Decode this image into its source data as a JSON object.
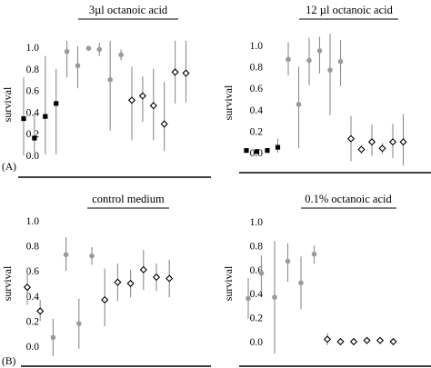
{
  "chart_data": [
    {
      "id": "p1",
      "type": "scatter",
      "title": "3µl octanoic acid",
      "ylabel": "survival",
      "panel_label": "(A)",
      "ylim": [
        -0.05,
        1.1
      ],
      "yticks": [
        "0.0",
        "0.2",
        "0.4",
        "0.6",
        "0.8",
        "1.0"
      ],
      "series": [
        {
          "marker": "square",
          "color": "#000000",
          "points": [
            {
              "x": 1,
              "y": 0.34,
              "lo": 0.0,
              "hi": 0.72
            },
            {
              "x": 2,
              "y": 0.16,
              "lo": 0.02,
              "hi": 0.38
            },
            {
              "x": 3,
              "y": 0.36,
              "lo": 0.01,
              "hi": 0.92
            },
            {
              "x": 4,
              "y": 0.48,
              "lo": 0.01,
              "hi": 0.8
            }
          ]
        },
        {
          "marker": "circle",
          "color": "#9a9a9a",
          "points": [
            {
              "x": 5,
              "y": 0.96,
              "lo": 0.72,
              "hi": 1.06
            },
            {
              "x": 6,
              "y": 0.83,
              "lo": 0.62,
              "hi": 1.01
            },
            {
              "x": 7,
              "y": 0.99,
              "lo": 0.99,
              "hi": 0.99
            },
            {
              "x": 8,
              "y": 0.98,
              "lo": 0.92,
              "hi": 1.04
            },
            {
              "x": 9,
              "y": 0.7,
              "lo": 0.23,
              "hi": 1.06
            },
            {
              "x": 10,
              "y": 0.93,
              "lo": 0.88,
              "hi": 0.98
            }
          ]
        },
        {
          "marker": "diamond",
          "color": "#000000",
          "points": [
            {
              "x": 11,
              "y": 0.51,
              "lo": 0.14,
              "hi": 0.82
            },
            {
              "x": 12,
              "y": 0.55,
              "lo": 0.31,
              "hi": 0.73
            },
            {
              "x": 13,
              "y": 0.46,
              "lo": 0.14,
              "hi": 0.8
            },
            {
              "x": 14,
              "y": 0.29,
              "lo": 0.04,
              "hi": 0.68
            },
            {
              "x": 15,
              "y": 0.77,
              "lo": 0.48,
              "hi": 1.06
            },
            {
              "x": 16,
              "y": 0.76,
              "lo": 0.49,
              "hi": 1.06
            }
          ]
        }
      ]
    },
    {
      "id": "p2",
      "type": "scatter",
      "title": "12 µl octanoic acid",
      "ylabel": "survival",
      "panel_label": "",
      "ylim": [
        -0.1,
        1.1
      ],
      "yticks": [
        "0.0",
        "0.2",
        "0.4",
        "0.6",
        "0.8",
        "1.0"
      ],
      "series": [
        {
          "marker": "square",
          "color": "#000000",
          "points": [
            {
              "x": 1,
              "y": 0.02,
              "lo": 0.02,
              "hi": 0.02
            },
            {
              "x": 2,
              "y": 0.01,
              "lo": 0.01,
              "hi": 0.01
            },
            {
              "x": 3,
              "y": 0.02,
              "lo": 0.02,
              "hi": 0.02
            },
            {
              "x": 4,
              "y": 0.05,
              "lo": 0.0,
              "hi": 0.13
            }
          ]
        },
        {
          "marker": "circle",
          "color": "#9a9a9a",
          "points": [
            {
              "x": 5,
              "y": 0.87,
              "lo": 0.72,
              "hi": 1.03
            },
            {
              "x": 6,
              "y": 0.45,
              "lo": 0.04,
              "hi": 0.8
            },
            {
              "x": 7,
              "y": 0.86,
              "lo": 0.63,
              "hi": 1.07
            },
            {
              "x": 8,
              "y": 0.95,
              "lo": 0.74,
              "hi": 1.08
            },
            {
              "x": 9,
              "y": 0.77,
              "lo": 0.35,
              "hi": 1.11
            },
            {
              "x": 10,
              "y": 0.85,
              "lo": 0.62,
              "hi": 1.05
            }
          ]
        },
        {
          "marker": "diamond",
          "color": "#000000",
          "points": [
            {
              "x": 11,
              "y": 0.13,
              "lo": -0.08,
              "hi": 0.34
            },
            {
              "x": 12,
              "y": 0.03,
              "lo": -0.01,
              "hi": 0.07
            },
            {
              "x": 13,
              "y": 0.1,
              "lo": -0.03,
              "hi": 0.26
            },
            {
              "x": 14,
              "y": 0.04,
              "lo": -0.01,
              "hi": 0.09
            },
            {
              "x": 15,
              "y": 0.1,
              "lo": -0.05,
              "hi": 0.27
            },
            {
              "x": 16,
              "y": 0.1,
              "lo": -0.12,
              "hi": 0.36
            }
          ]
        }
      ]
    },
    {
      "id": "p3",
      "type": "scatter",
      "title": "control medium",
      "ylabel": "survival",
      "panel_label": "(B)",
      "ylim": [
        -0.1,
        1.05
      ],
      "yticks": [
        "0.0",
        "0.2",
        "0.4",
        "0.6",
        "0.8",
        "1.0"
      ],
      "series": [
        {
          "marker": "diamond",
          "color": "#000000",
          "points": [
            {
              "x": 1,
              "y": 0.47,
              "lo": 0.33,
              "hi": 0.62
            },
            {
              "x": 2,
              "y": 0.28,
              "lo": 0.2,
              "hi": 0.37
            }
          ]
        },
        {
          "marker": "circle",
          "color": "#9a9a9a",
          "points": [
            {
              "x": 3,
              "y": 0.07,
              "lo": -0.08,
              "hi": 0.22
            },
            {
              "x": 4,
              "y": 0.73,
              "lo": 0.6,
              "hi": 0.87
            },
            {
              "x": 5,
              "y": 0.18,
              "lo": -0.02,
              "hi": 0.38
            },
            {
              "x": 6,
              "y": 0.72,
              "lo": 0.65,
              "hi": 0.79
            }
          ]
        },
        {
          "marker": "diamond",
          "color": "#000000",
          "points": [
            {
              "x": 7,
              "y": 0.37,
              "lo": 0.16,
              "hi": 0.62
            },
            {
              "x": 8,
              "y": 0.51,
              "lo": 0.36,
              "hi": 0.66
            },
            {
              "x": 9,
              "y": 0.5,
              "lo": 0.39,
              "hi": 0.61
            },
            {
              "x": 10,
              "y": 0.61,
              "lo": 0.45,
              "hi": 0.77
            },
            {
              "x": 11,
              "y": 0.55,
              "lo": 0.44,
              "hi": 0.66
            },
            {
              "x": 12,
              "y": 0.54,
              "lo": 0.39,
              "hi": 0.69
            }
          ]
        }
      ]
    },
    {
      "id": "p4",
      "type": "scatter",
      "title": "0.1% octanoic acid",
      "ylabel": "survival",
      "panel_label": "",
      "ylim": [
        -0.1,
        1.05
      ],
      "yticks": [
        "0.0",
        "0.2",
        "0.4",
        "0.6",
        "0.8",
        "1.0"
      ],
      "series": [
        {
          "marker": "circle",
          "color": "#9a9a9a",
          "points": [
            {
              "x": 1,
              "y": 0.36,
              "lo": 0.19,
              "hi": 0.53
            },
            {
              "x": 2,
              "y": 0.57,
              "lo": 0.41,
              "hi": 0.72
            },
            {
              "x": 3,
              "y": 0.37,
              "lo": -0.1,
              "hi": 0.84
            },
            {
              "x": 4,
              "y": 0.67,
              "lo": 0.5,
              "hi": 0.82
            },
            {
              "x": 5,
              "y": 0.49,
              "lo": 0.27,
              "hi": 0.71
            },
            {
              "x": 6,
              "y": 0.73,
              "lo": 0.65,
              "hi": 0.8
            }
          ]
        },
        {
          "marker": "diamond",
          "color": "#000000",
          "points": [
            {
              "x": 7,
              "y": 0.02,
              "lo": -0.03,
              "hi": 0.07
            },
            {
              "x": 8,
              "y": 0.0,
              "lo": 0.0,
              "hi": 0.0
            },
            {
              "x": 9,
              "y": 0.0,
              "lo": 0.0,
              "hi": 0.0
            },
            {
              "x": 10,
              "y": 0.01,
              "lo": 0.01,
              "hi": 0.01
            },
            {
              "x": 11,
              "y": 0.01,
              "lo": 0.01,
              "hi": 0.01
            },
            {
              "x": 12,
              "y": 0.0,
              "lo": 0.0,
              "hi": 0.0
            }
          ]
        }
      ]
    }
  ]
}
